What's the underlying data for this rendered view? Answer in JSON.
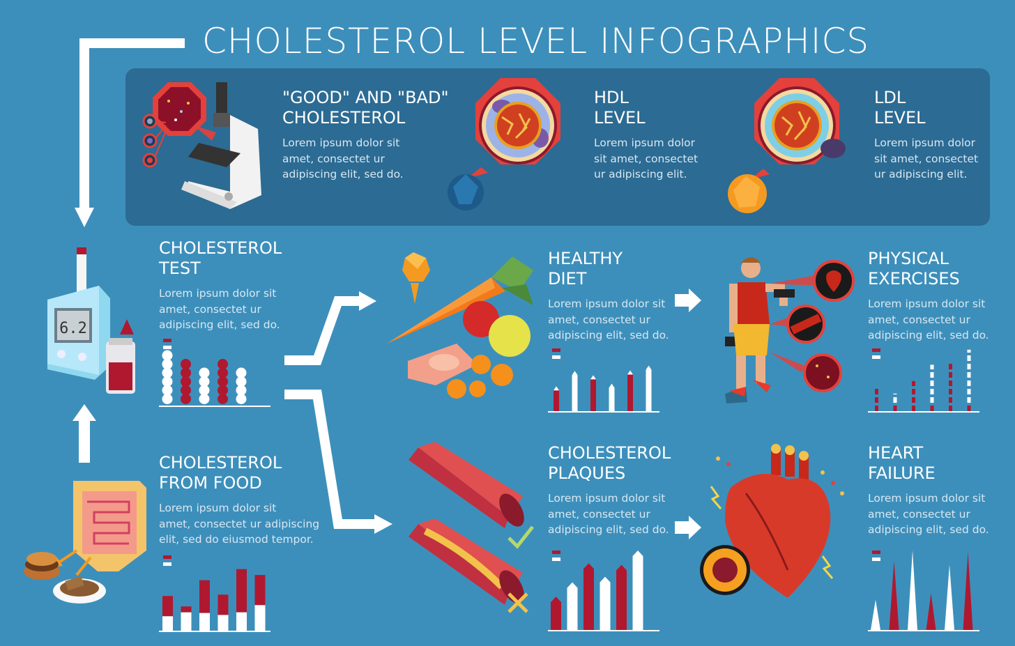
{
  "title": "CHOLESTEROL LEVEL INFOGRAPHICS",
  "top_panel": {
    "items": [
      {
        "heading": "\"GOOD\" AND \"BAD\"\nCHOLESTEROL",
        "text": "Lorem ipsum dolor sit\namet, consectet ur\nadipiscing elit, sed do."
      },
      {
        "heading": "HDL\nLEVEL",
        "text": "Lorem ipsum dolor\nsit amet, consectet\nur adipiscing elit."
      },
      {
        "heading": "LDL\nLEVEL",
        "text": "Lorem ipsum dolor\nsit amet, consectet\nur adipiscing elit."
      }
    ]
  },
  "sections": {
    "test": {
      "heading": "CHOLESTEROL\nTEST",
      "text": "Lorem ipsum dolor sit\namet, consectet ur\nadipiscing elit, sed do."
    },
    "food": {
      "heading": "CHOLESTEROL\nFROM FOOD",
      "text": "Lorem ipsum dolor sit\namet, consectet ur adipiscing\nelit, sed do eiusmod tempor."
    },
    "diet": {
      "heading": "HEALTHY\nDIET",
      "text": "Lorem ipsum dolor sit\namet, consectet ur\nadipiscing elit, sed do."
    },
    "exercise": {
      "heading": "PHYSICAL\nEXERCISES",
      "text": "Lorem ipsum dolor sit\namet, consectet ur\nadipiscing elit, sed do."
    },
    "plaques": {
      "heading": "CHOLESTEROL\nPLAQUES",
      "text": "Lorem ipsum dolor sit\namet, consectet ur\nadipiscing elit, sed do."
    },
    "heart": {
      "heading": "HEART\nFAILURE",
      "text": "Lorem ipsum dolor sit\namet, consectet ur\nadipiscing elit, sed do."
    }
  },
  "meter_display": "6.2",
  "colors": {
    "background": "#3d8fbb",
    "panel": "#2c6b93",
    "accent_red": "#b0182f",
    "white": "#ffffff"
  },
  "icons": [
    "microscope-icon",
    "hdl-particle-icon",
    "ldl-particle-icon",
    "glucometer-icon",
    "intestine-icon",
    "vegetables-icon",
    "athlete-icon",
    "artery-icon",
    "heart-icon"
  ],
  "chart_data": [
    {
      "type": "bar",
      "name": "test",
      "values": [
        1.0,
        0.85,
        0.7,
        0.95,
        0.75
      ],
      "style": "beads"
    },
    {
      "type": "bar",
      "name": "food",
      "series": [
        {
          "values": [
            0.53,
            0.37,
            0.77,
            0.55,
            0.94,
            0.85
          ]
        },
        {
          "values": [
            0.22,
            0.28,
            0.27,
            0.24,
            0.28,
            0.39
          ]
        }
      ]
    },
    {
      "type": "bar",
      "name": "diet",
      "values": [
        0.47,
        0.76,
        0.68,
        0.52,
        0.77,
        0.86
      ]
    },
    {
      "type": "bar",
      "name": "exercise",
      "values": [
        0.37,
        0.28,
        0.48,
        0.74,
        0.78,
        0.98
      ]
    },
    {
      "type": "bar",
      "name": "plaques",
      "values": [
        0.42,
        0.6,
        0.84,
        0.67,
        0.82,
        1.0
      ]
    },
    {
      "type": "bar",
      "name": "heart",
      "values": [
        0.38,
        0.87,
        1.0,
        0.46,
        0.82,
        0.98
      ]
    }
  ]
}
